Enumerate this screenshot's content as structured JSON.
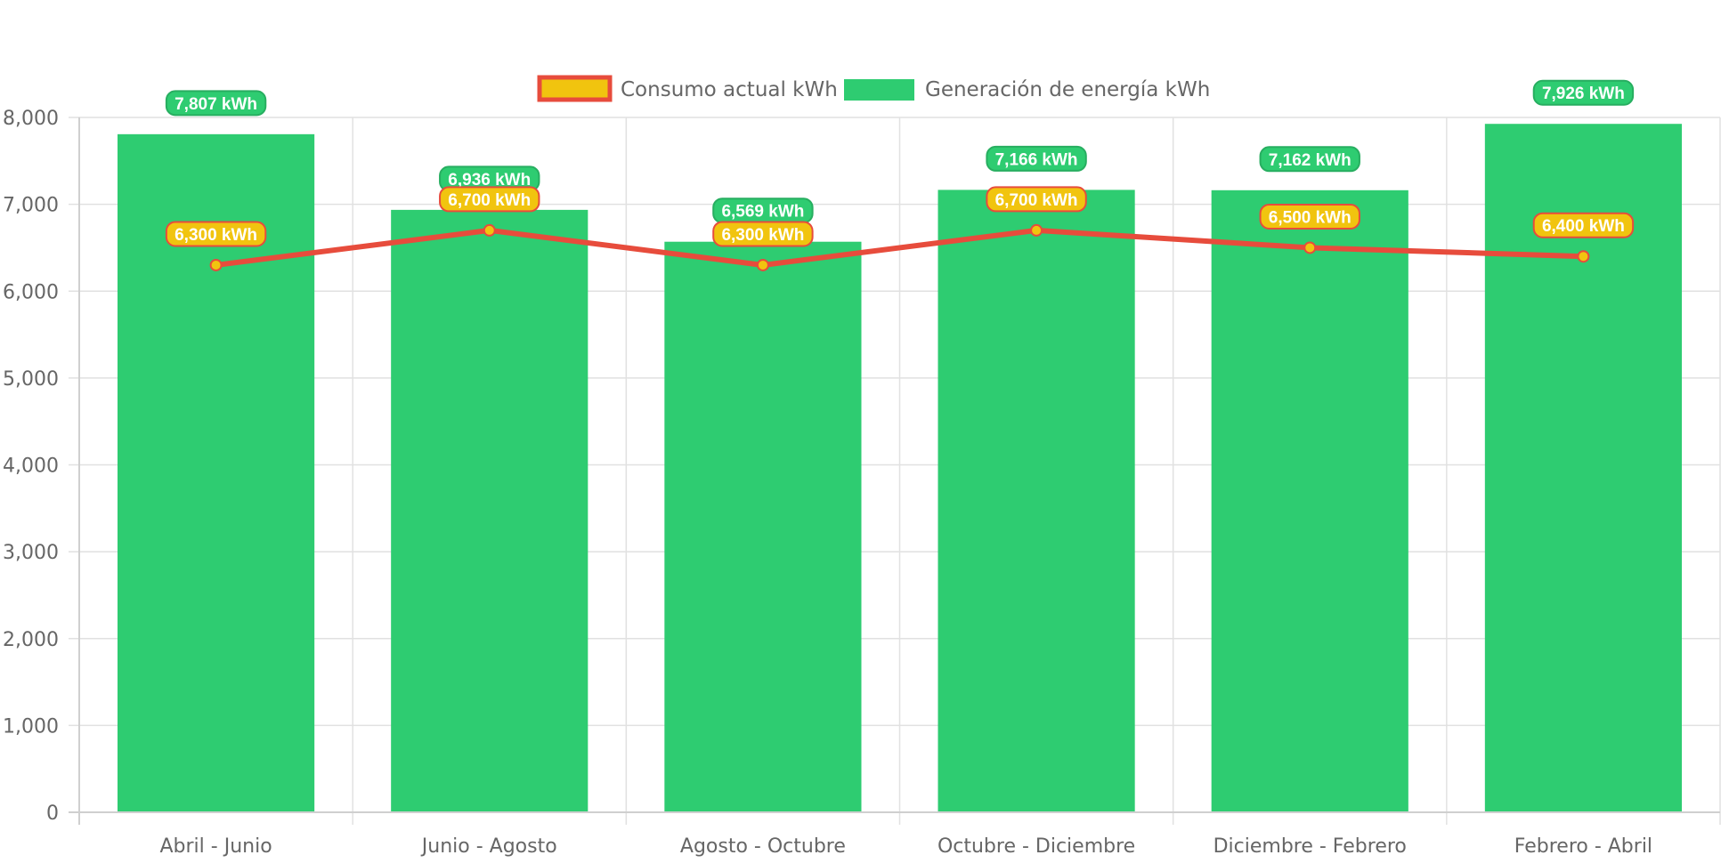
{
  "chart_data": {
    "type": "bar",
    "categories": [
      "Abril - Junio",
      "Junio - Agosto",
      "Agosto - Octubre",
      "Octubre - Diciembre",
      "Diciembre - Febrero",
      "Febrero - Abril"
    ],
    "series": [
      {
        "name": "Consumo actual kWh",
        "kind": "line",
        "values": [
          6300,
          6700,
          6300,
          6700,
          6500,
          6400
        ],
        "labels": [
          "6,300 kWh",
          "6,700 kWh",
          "6,300 kWh",
          "6,700 kWh",
          "6,500 kWh",
          "6,400 kWh"
        ],
        "color": "#e74c3c",
        "fill": "#f1c40f"
      },
      {
        "name": "Generación de energía kWh",
        "kind": "bar",
        "values": [
          7807,
          6936,
          6569,
          7166,
          7162,
          7926
        ],
        "labels": [
          "7,807 kWh",
          "6,936 kWh",
          "6,569 kWh",
          "7,166 kWh",
          "7,162 kWh",
          "7,926 kWh"
        ],
        "color": "#2ecc71"
      }
    ],
    "ylim": [
      0,
      8000
    ],
    "y_ticks": [
      0,
      1000,
      2000,
      3000,
      4000,
      5000,
      6000,
      7000,
      8000
    ],
    "y_tick_labels": [
      "0",
      "1,000",
      "2,000",
      "3,000",
      "4,000",
      "5,000",
      "6,000",
      "7,000",
      "8,000"
    ],
    "grid": true,
    "legend_position": "top-center"
  }
}
